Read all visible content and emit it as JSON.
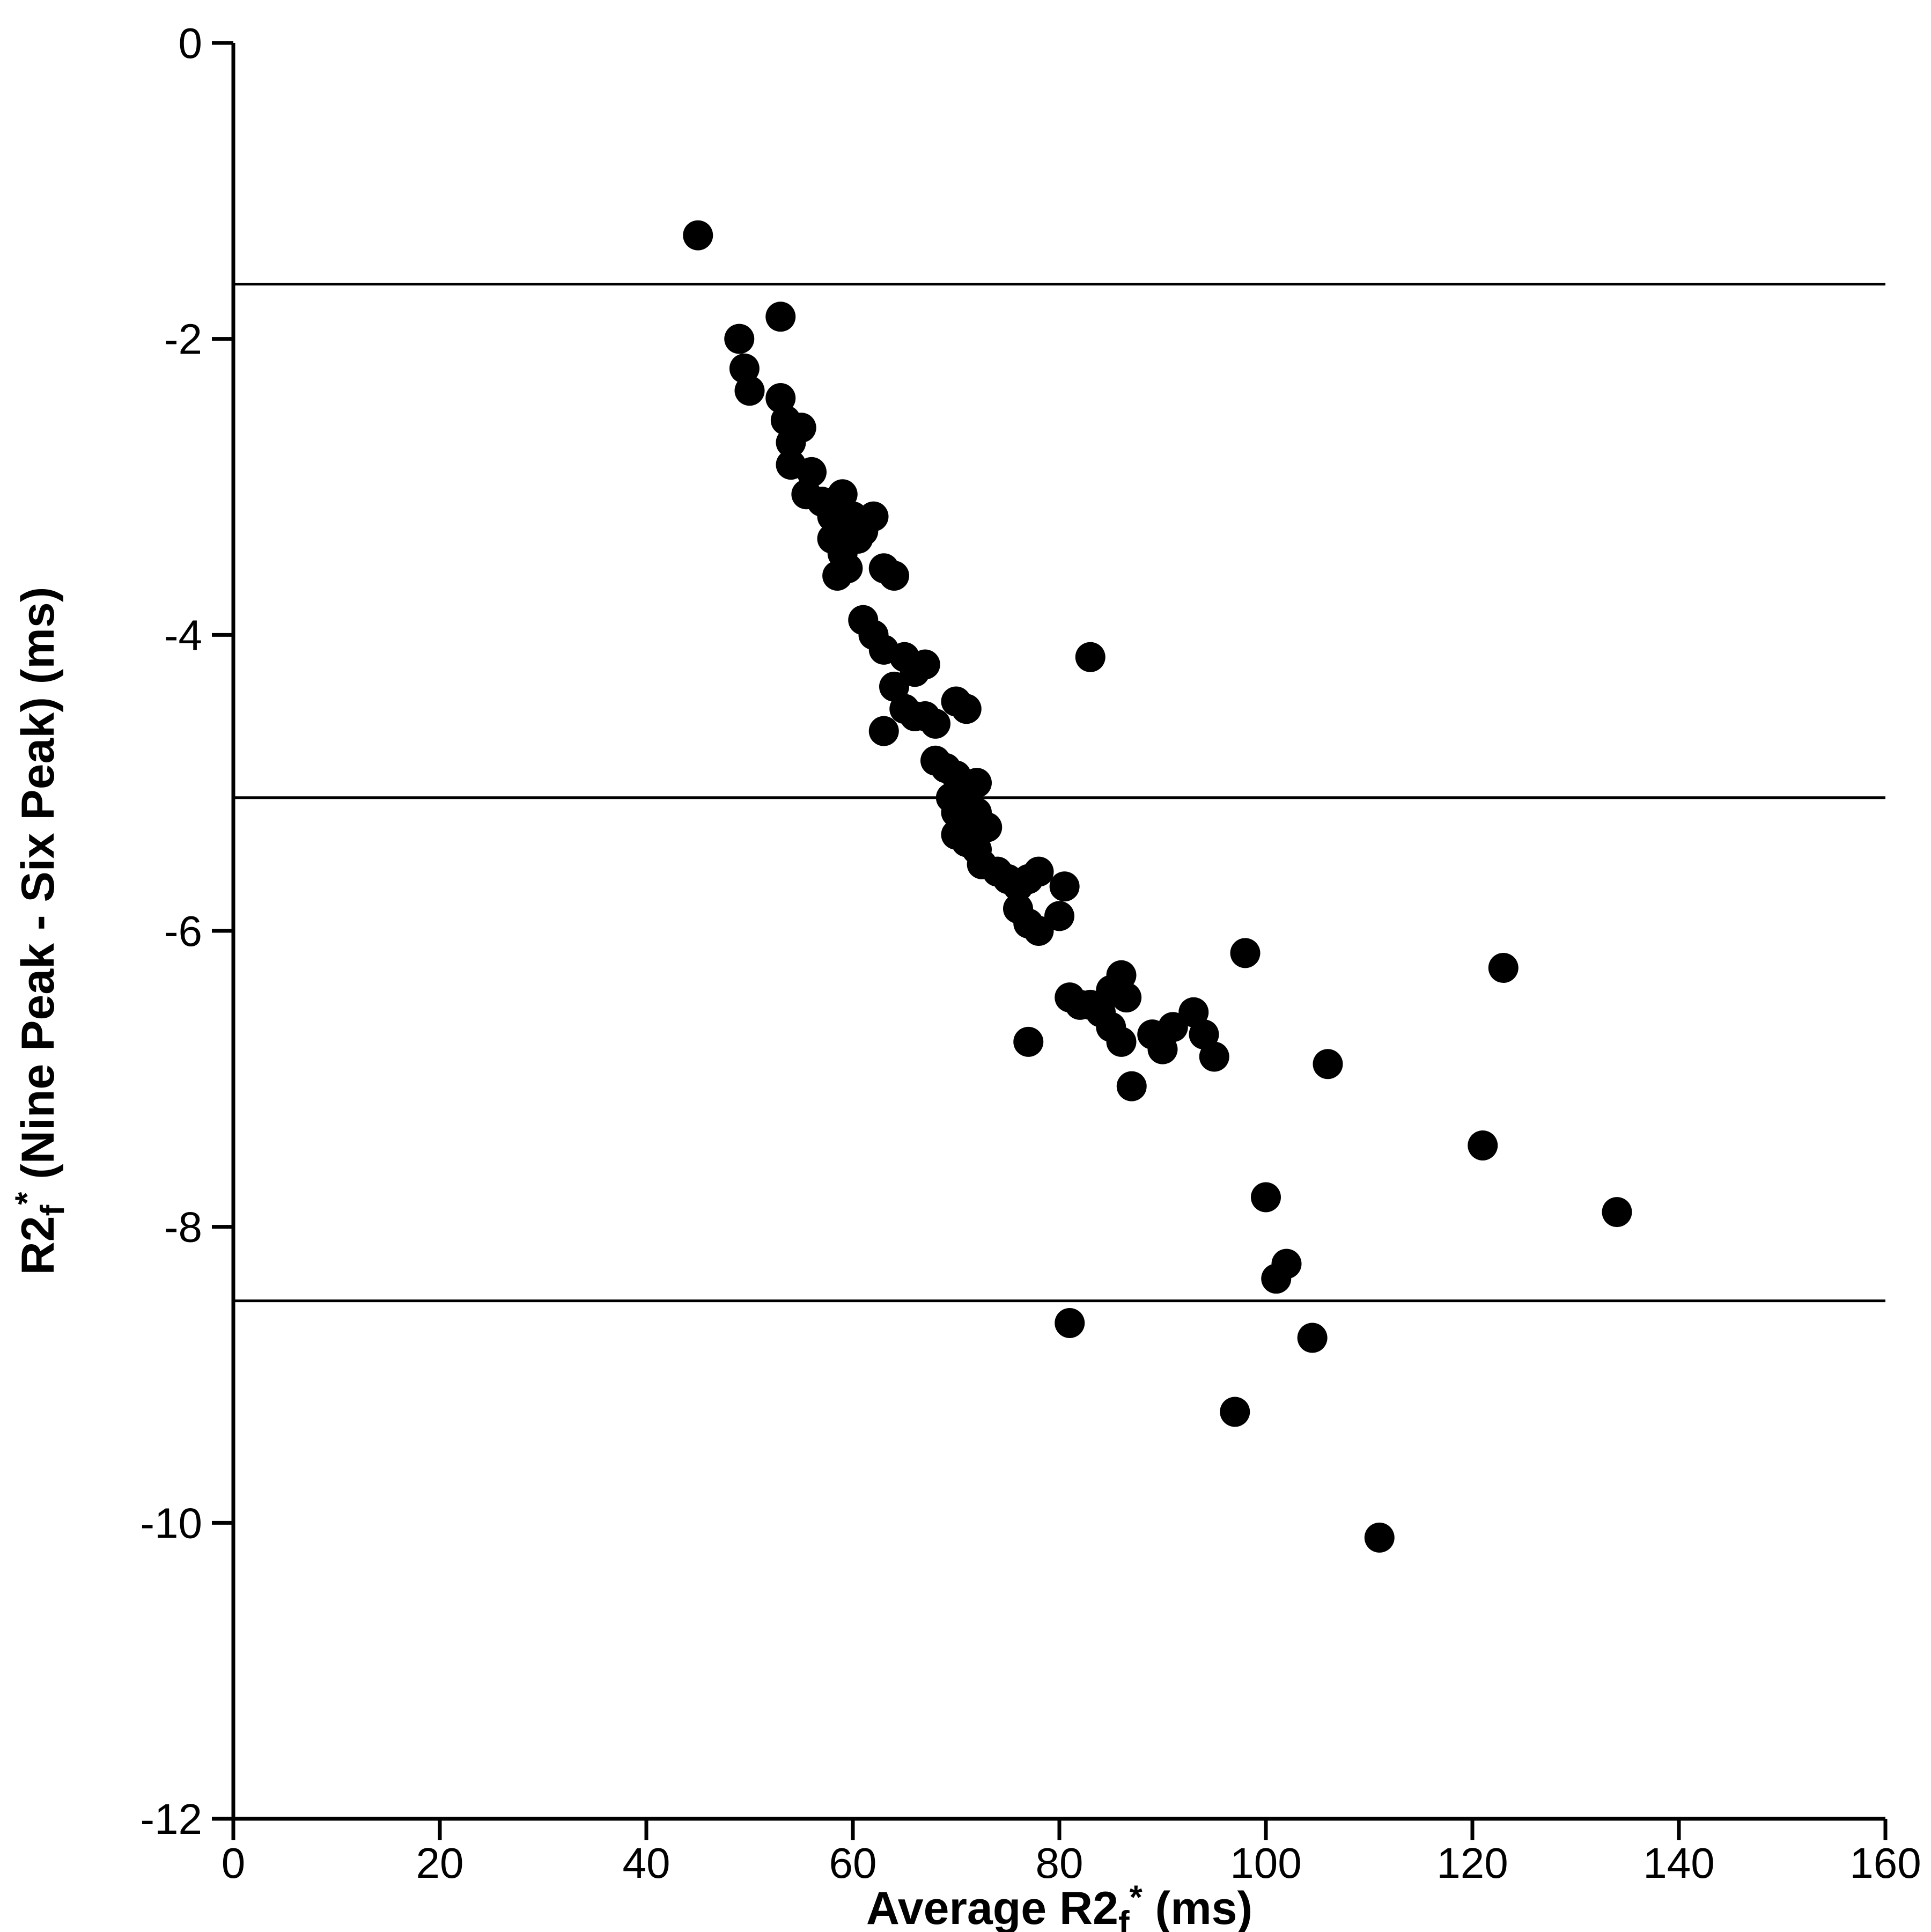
{
  "page": {
    "background": "#ffffff"
  },
  "chart_data": {
    "type": "scatter",
    "title": "",
    "xlabel_text": "Average R2f* (ms)",
    "ylabel_text": "R2f* (Nine Peak - Six Peak) (ms)",
    "xlabel_parts": [
      {
        "text": "Average R2"
      },
      {
        "text": "f",
        "offset": "sub"
      },
      {
        "text": "*",
        "offset": "sup"
      },
      {
        "text": " (ms)"
      }
    ],
    "ylabel_parts": [
      {
        "text": "R2"
      },
      {
        "text": "f",
        "offset": "sub"
      },
      {
        "text": "*",
        "offset": "sup"
      },
      {
        "text": " (Nine Peak - Six Peak) (ms)"
      }
    ],
    "xlim": [
      0,
      160
    ],
    "ylim": [
      -12,
      0
    ],
    "xticks": [
      0,
      20,
      40,
      60,
      80,
      100,
      120,
      140,
      160
    ],
    "yticks": [
      0,
      -2,
      -4,
      -6,
      -8,
      -10,
      -12
    ],
    "grid": false,
    "legend": "none",
    "marker_color": "#000000",
    "axis_color": "#000000",
    "reference_lines": [
      {
        "name": "upper-limit-of-agreement",
        "y": -1.63
      },
      {
        "name": "mean-difference",
        "y": -5.1
      },
      {
        "name": "lower-limit-of-agreement",
        "y": -8.5
      }
    ],
    "points": [
      [
        45,
        -1.3
      ],
      [
        53,
        -1.85
      ],
      [
        49,
        -2.0
      ],
      [
        49.5,
        -2.2
      ],
      [
        50,
        -2.35
      ],
      [
        53,
        -2.4
      ],
      [
        53.5,
        -2.55
      ],
      [
        54,
        -2.7
      ],
      [
        55,
        -2.6
      ],
      [
        54,
        -2.85
      ],
      [
        56,
        -2.9
      ],
      [
        55.5,
        -3.05
      ],
      [
        57,
        -3.1
      ],
      [
        58,
        -3.2
      ],
      [
        59,
        -3.05
      ],
      [
        59.5,
        -3.25
      ],
      [
        60,
        -3.2
      ],
      [
        58,
        -3.35
      ],
      [
        59,
        -3.45
      ],
      [
        60.5,
        -3.35
      ],
      [
        58.5,
        -3.6
      ],
      [
        59.5,
        -3.55
      ],
      [
        61,
        -3.3
      ],
      [
        62,
        -3.2
      ],
      [
        63,
        -3.55
      ],
      [
        64,
        -3.6
      ],
      [
        61,
        -3.9
      ],
      [
        62,
        -4.0
      ],
      [
        63,
        -4.1
      ],
      [
        65,
        -4.15
      ],
      [
        66,
        -4.25
      ],
      [
        64,
        -4.35
      ],
      [
        67,
        -4.2
      ],
      [
        65,
        -4.5
      ],
      [
        66,
        -4.55
      ],
      [
        63,
        -4.65
      ],
      [
        67,
        -4.55
      ],
      [
        68,
        -4.6
      ],
      [
        70,
        -4.45
      ],
      [
        71,
        -4.5
      ],
      [
        68,
        -4.85
      ],
      [
        69,
        -4.9
      ],
      [
        70,
        -4.95
      ],
      [
        70.5,
        -5.0
      ],
      [
        71,
        -5.05
      ],
      [
        72,
        -5.0
      ],
      [
        69.5,
        -5.1
      ],
      [
        70,
        -5.2
      ],
      [
        71,
        -5.25
      ],
      [
        72,
        -5.2
      ],
      [
        70,
        -5.35
      ],
      [
        71,
        -5.4
      ],
      [
        72,
        -5.45
      ],
      [
        73,
        -5.3
      ],
      [
        72.5,
        -5.55
      ],
      [
        74,
        -5.6
      ],
      [
        75,
        -5.65
      ],
      [
        76,
        -5.7
      ],
      [
        77,
        -5.65
      ],
      [
        78,
        -5.6
      ],
      [
        76,
        -5.85
      ],
      [
        77,
        -5.95
      ],
      [
        78,
        -6.0
      ],
      [
        80,
        -5.9
      ],
      [
        80.5,
        -5.7
      ],
      [
        83,
        -4.15
      ],
      [
        77,
        -6.75
      ],
      [
        81,
        -6.45
      ],
      [
        82,
        -6.5
      ],
      [
        83,
        -6.5
      ],
      [
        84,
        -6.55
      ],
      [
        85,
        -6.4
      ],
      [
        86,
        -6.3
      ],
      [
        86.5,
        -6.45
      ],
      [
        85,
        -6.65
      ],
      [
        86,
        -6.75
      ],
      [
        87,
        -7.05
      ],
      [
        89,
        -6.7
      ],
      [
        90,
        -6.8
      ],
      [
        91,
        -6.65
      ],
      [
        93,
        -6.55
      ],
      [
        94,
        -6.7
      ],
      [
        95,
        -6.85
      ],
      [
        98,
        -6.15
      ],
      [
        81,
        -8.65
      ],
      [
        97,
        -9.25
      ],
      [
        100,
        -7.8
      ],
      [
        101,
        -8.35
      ],
      [
        102,
        -8.25
      ],
      [
        104.5,
        -8.75
      ],
      [
        106,
        -6.9
      ],
      [
        111,
        -10.1
      ],
      [
        121,
        -7.45
      ],
      [
        123,
        -6.25
      ],
      [
        134,
        -7.9
      ]
    ],
    "style": {
      "marker_radius": 28,
      "axis_stroke_width": 7,
      "tick_length": 40,
      "tick_stroke_width": 7,
      "ref_line_stroke_width": 5,
      "tick_font_size": 80,
      "axis_label_font_size": 86
    },
    "layout": {
      "plot_left": 435,
      "plot_right": 3515,
      "plot_top": 80,
      "plot_bottom": 3390,
      "x_tick_label_baseline": 3500,
      "x_axis_label_baseline": 3586,
      "y_axis_label_x": 100
    }
  }
}
